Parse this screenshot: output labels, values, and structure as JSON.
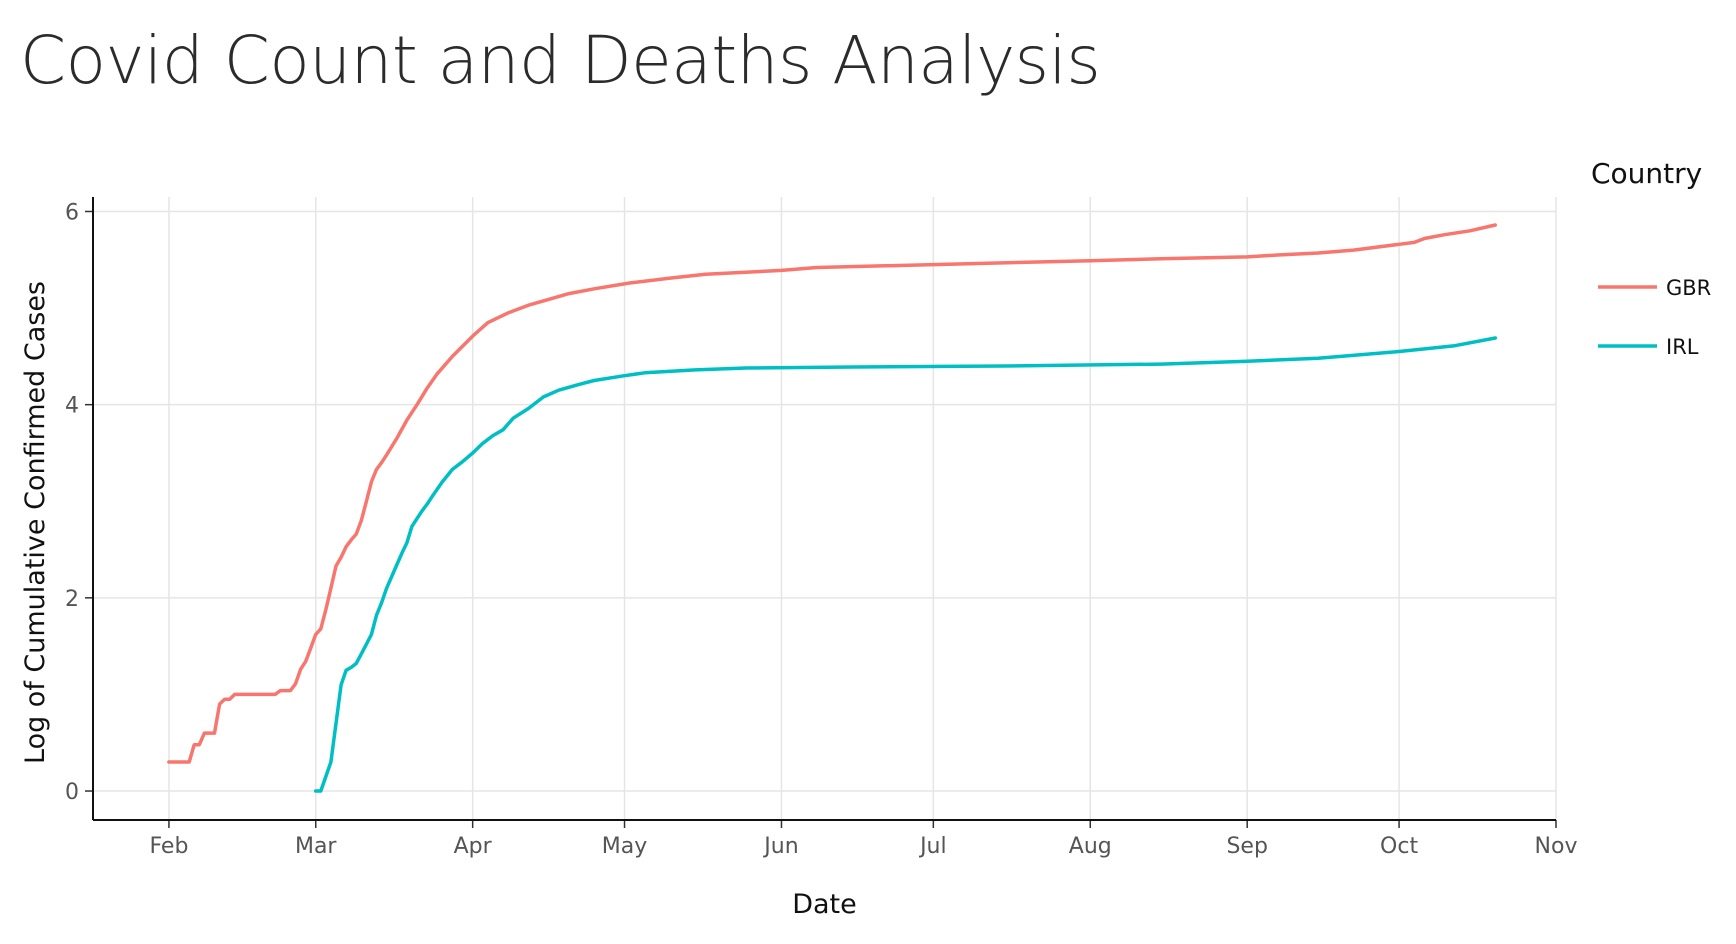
{
  "chart_data": {
    "type": "line",
    "title": "Covid Count and Deaths Analysis",
    "xlabel": "Date",
    "ylabel": "Log of Cumulative Confirmed Cases",
    "x_ticks": [
      {
        "date": "2020-02-01",
        "label": "Feb"
      },
      {
        "date": "2020-03-01",
        "label": "Mar"
      },
      {
        "date": "2020-04-01",
        "label": "Apr"
      },
      {
        "date": "2020-05-01",
        "label": "May"
      },
      {
        "date": "2020-06-01",
        "label": "Jun"
      },
      {
        "date": "2020-07-01",
        "label": "Jul"
      },
      {
        "date": "2020-08-01",
        "label": "Aug"
      },
      {
        "date": "2020-09-01",
        "label": "Sep"
      },
      {
        "date": "2020-10-01",
        "label": "Oct"
      },
      {
        "date": "2020-11-01",
        "label": "Nov"
      }
    ],
    "y_ticks": [
      0,
      2,
      4,
      6
    ],
    "xlim": [
      "2020-01-17",
      "2020-11-01"
    ],
    "ylim": [
      -0.3,
      6.15
    ],
    "grid": true,
    "legend": {
      "title": "Country",
      "placement": "right"
    },
    "series": [
      {
        "name": "GBR",
        "color": "#F8766D",
        "x": [
          "2020-02-01",
          "2020-02-04",
          "2020-02-05",
          "2020-02-06",
          "2020-02-07",
          "2020-02-08",
          "2020-02-09",
          "2020-02-10",
          "2020-02-11",
          "2020-02-12",
          "2020-02-13",
          "2020-02-14",
          "2020-02-15",
          "2020-02-22",
          "2020-02-23",
          "2020-02-24",
          "2020-02-25",
          "2020-02-26",
          "2020-02-27",
          "2020-02-28",
          "2020-02-29",
          "2020-03-01",
          "2020-03-02",
          "2020-03-03",
          "2020-03-04",
          "2020-03-05",
          "2020-03-06",
          "2020-03-07",
          "2020-03-08",
          "2020-03-09",
          "2020-03-10",
          "2020-03-11",
          "2020-03-12",
          "2020-03-13",
          "2020-03-14",
          "2020-03-15",
          "2020-03-17",
          "2020-03-19",
          "2020-03-21",
          "2020-03-23",
          "2020-03-25",
          "2020-03-28",
          "2020-04-01",
          "2020-04-04",
          "2020-04-08",
          "2020-04-12",
          "2020-04-16",
          "2020-04-20",
          "2020-04-25",
          "2020-05-02",
          "2020-05-10",
          "2020-05-17",
          "2020-06-01",
          "2020-06-08",
          "2020-07-01",
          "2020-08-01",
          "2020-08-15",
          "2020-09-01",
          "2020-09-07",
          "2020-09-15",
          "2020-09-22",
          "2020-10-01",
          "2020-10-04",
          "2020-10-06",
          "2020-10-10",
          "2020-10-15",
          "2020-10-20"
        ],
        "values": [
          0.3,
          0.3,
          0.3,
          0.48,
          0.48,
          0.6,
          0.6,
          0.6,
          0.9,
          0.95,
          0.95,
          1.0,
          1.0,
          1.0,
          1.04,
          1.04,
          1.04,
          1.11,
          1.26,
          1.34,
          1.48,
          1.62,
          1.68,
          1.88,
          2.1,
          2.33,
          2.42,
          2.53,
          2.6,
          2.66,
          2.8,
          3.0,
          3.2,
          3.33,
          3.4,
          3.48,
          3.65,
          3.84,
          4.0,
          4.17,
          4.32,
          4.5,
          4.71,
          4.85,
          4.95,
          5.03,
          5.09,
          5.15,
          5.2,
          5.26,
          5.31,
          5.35,
          5.39,
          5.42,
          5.45,
          5.49,
          5.51,
          5.53,
          5.55,
          5.57,
          5.6,
          5.66,
          5.68,
          5.72,
          5.76,
          5.8,
          5.86
        ]
      },
      {
        "name": "IRL",
        "color": "#00BFC4",
        "x": [
          "2020-03-01",
          "2020-03-02",
          "2020-03-04",
          "2020-03-06",
          "2020-03-07",
          "2020-03-08",
          "2020-03-09",
          "2020-03-10",
          "2020-03-11",
          "2020-03-12",
          "2020-03-13",
          "2020-03-14",
          "2020-03-15",
          "2020-03-16",
          "2020-03-17",
          "2020-03-18",
          "2020-03-19",
          "2020-03-20",
          "2020-03-21",
          "2020-03-22",
          "2020-03-23",
          "2020-03-24",
          "2020-03-26",
          "2020-03-28",
          "2020-03-30",
          "2020-04-01",
          "2020-04-03",
          "2020-04-05",
          "2020-04-07",
          "2020-04-09",
          "2020-04-12",
          "2020-04-15",
          "2020-04-18",
          "2020-04-22",
          "2020-04-25",
          "2020-05-01",
          "2020-05-05",
          "2020-05-15",
          "2020-05-25",
          "2020-06-15",
          "2020-07-15",
          "2020-08-15",
          "2020-09-01",
          "2020-09-15",
          "2020-10-01",
          "2020-10-12",
          "2020-10-20"
        ],
        "values": [
          0,
          0,
          0.3,
          1.1,
          1.25,
          1.28,
          1.32,
          1.42,
          1.52,
          1.62,
          1.82,
          1.95,
          2.1,
          2.22,
          2.34,
          2.46,
          2.57,
          2.74,
          2.82,
          2.9,
          2.97,
          3.05,
          3.2,
          3.33,
          3.41,
          3.5,
          3.6,
          3.68,
          3.74,
          3.86,
          3.96,
          4.08,
          4.15,
          4.21,
          4.25,
          4.3,
          4.33,
          4.36,
          4.38,
          4.39,
          4.4,
          4.42,
          4.45,
          4.48,
          4.55,
          4.61,
          4.69
        ]
      }
    ]
  }
}
